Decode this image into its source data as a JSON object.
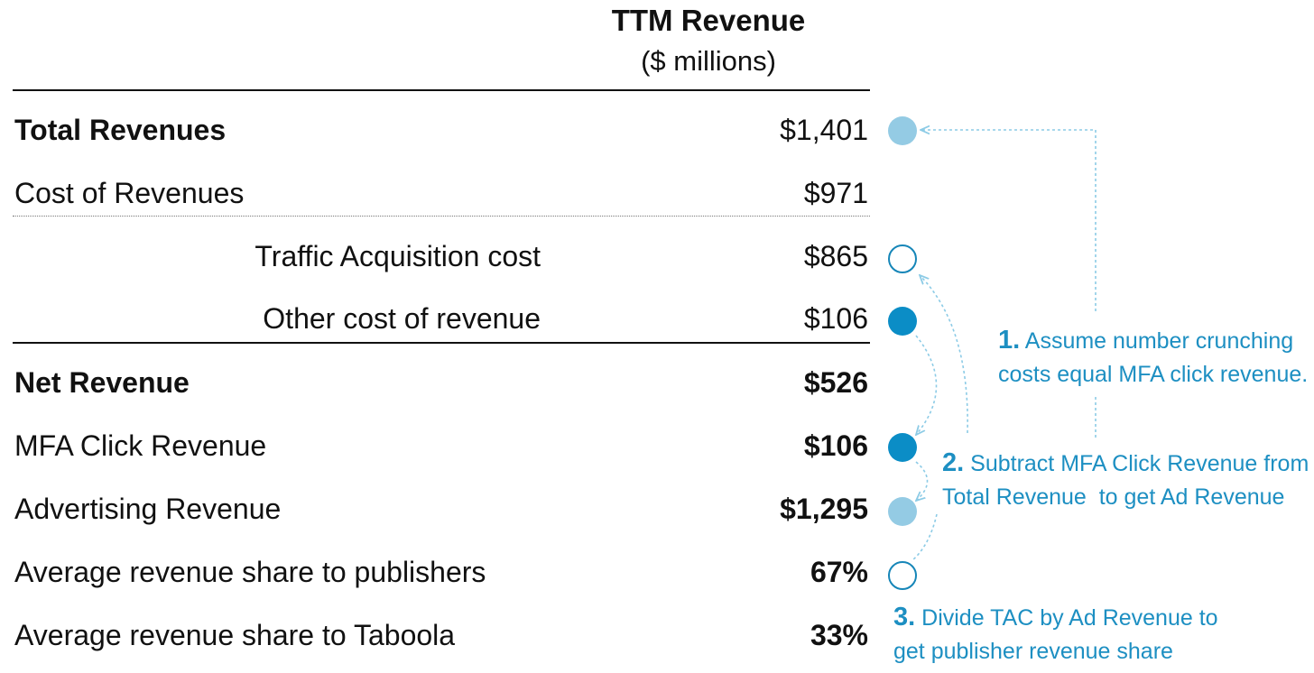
{
  "header": {
    "title": "TTM Revenue",
    "subtitle": "($ millions)"
  },
  "rows": [
    {
      "label": "Total Revenues",
      "value": "$1,401"
    },
    {
      "label": "Cost of Revenues",
      "value": "$971"
    },
    {
      "label": "Traffic Acquisition cost",
      "value": "$865"
    },
    {
      "label": "Other cost of revenue",
      "value": "$106"
    },
    {
      "label": "Net Revenue",
      "value": "$526"
    },
    {
      "label": "MFA Click Revenue",
      "value": "$106"
    },
    {
      "label": "Advertising Revenue",
      "value": "$1,295"
    },
    {
      "label": "Average revenue share to publishers",
      "value": "67%"
    },
    {
      "label": "Average revenue share to Taboola",
      "value": "33%"
    }
  ],
  "notes": [
    {
      "num": "1.",
      "line1": "Assume number crunching",
      "line2": "costs equal MFA click revenue."
    },
    {
      "num": "2.",
      "line1": "Subtract MFA Click Revenue from",
      "line2": "Total Revenue  to get Ad Revenue"
    },
    {
      "num": "3.",
      "line1": "Divide TAC by Ad Revenue to",
      "line2": "get publisher revenue share"
    }
  ],
  "colors": {
    "marker_light": "#94cbe4",
    "marker_dark": "#0b8dc6",
    "marker_outline": "#1686b8",
    "note_text": "#1d8fc2",
    "connector": "#8ccbe6"
  }
}
